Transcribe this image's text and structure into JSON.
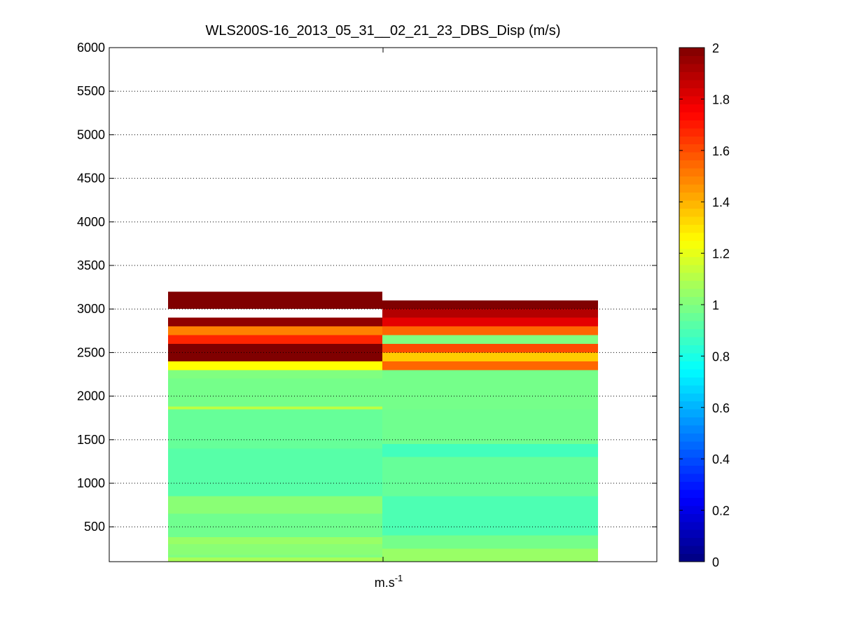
{
  "chart_data": {
    "type": "heatmap",
    "title": "WLS200S-16_2013_05_31__02_21_23_DBS_Disp (m/s)",
    "xlabel_base": "m.s",
    "xlabel_exp": "-1",
    "ylabel": "",
    "ylim": [
      100,
      6000
    ],
    "yticks": [
      500,
      1000,
      1500,
      2000,
      2500,
      3000,
      3500,
      4000,
      4500,
      5000,
      5500,
      6000
    ],
    "grid": "dotted horizontal at y ticks",
    "colormap": "jet",
    "clim": [
      0,
      2
    ],
    "colorbar_ticks": [
      0,
      0.2,
      0.4,
      0.6,
      0.8,
      1,
      1.2,
      1.4,
      1.6,
      1.8,
      2
    ],
    "columns": [
      {
        "segments": [
          {
            "y0": 100,
            "y1": 150,
            "v": 1.08
          },
          {
            "y0": 150,
            "y1": 180,
            "v": 1.0
          },
          {
            "y0": 180,
            "y1": 300,
            "v": 1.02
          },
          {
            "y0": 300,
            "y1": 380,
            "v": 1.05
          },
          {
            "y0": 380,
            "y1": 650,
            "v": 0.97
          },
          {
            "y0": 650,
            "y1": 850,
            "v": 1.02
          },
          {
            "y0": 850,
            "y1": 1400,
            "v": 0.92
          },
          {
            "y0": 1400,
            "y1": 1850,
            "v": 0.95
          },
          {
            "y0": 1850,
            "y1": 1880,
            "v": 1.12
          },
          {
            "y0": 1880,
            "y1": 2200,
            "v": 0.98
          },
          {
            "y0": 2200,
            "y1": 2300,
            "v": 1.0
          },
          {
            "y0": 2300,
            "y1": 2400,
            "v": 1.25
          },
          {
            "y0": 2400,
            "y1": 2600,
            "v": 2.0
          },
          {
            "y0": 2600,
            "y1": 2700,
            "v": 1.68
          },
          {
            "y0": 2700,
            "y1": 2800,
            "v": 1.5
          },
          {
            "y0": 2800,
            "y1": 2900,
            "v": 1.97
          },
          {
            "y0": 3000,
            "y1": 3200,
            "v": 2.0
          }
        ]
      },
      {
        "segments": [
          {
            "y0": 100,
            "y1": 250,
            "v": 1.05
          },
          {
            "y0": 250,
            "y1": 400,
            "v": 0.98
          },
          {
            "y0": 400,
            "y1": 850,
            "v": 0.9
          },
          {
            "y0": 850,
            "y1": 1300,
            "v": 0.95
          },
          {
            "y0": 1300,
            "y1": 1450,
            "v": 0.88
          },
          {
            "y0": 1450,
            "y1": 1850,
            "v": 0.97
          },
          {
            "y0": 1850,
            "y1": 2300,
            "v": 0.98
          },
          {
            "y0": 2300,
            "y1": 2400,
            "v": 1.55
          },
          {
            "y0": 2400,
            "y1": 2500,
            "v": 1.35
          },
          {
            "y0": 2500,
            "y1": 2600,
            "v": 1.6
          },
          {
            "y0": 2600,
            "y1": 2700,
            "v": 1.0
          },
          {
            "y0": 2700,
            "y1": 2800,
            "v": 1.55
          },
          {
            "y0": 2800,
            "y1": 2900,
            "v": 1.8
          },
          {
            "y0": 2900,
            "y1": 3000,
            "v": 1.9
          },
          {
            "y0": 3000,
            "y1": 3100,
            "v": 2.0
          }
        ]
      }
    ]
  }
}
